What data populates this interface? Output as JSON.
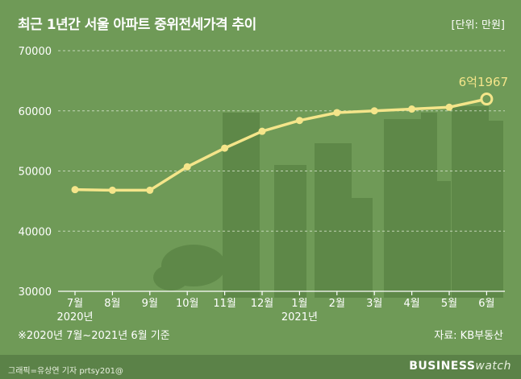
{
  "title": "최근 1년간 서울 아파트 중위전세가격 추이",
  "unit": "[단위: 만원]",
  "note": "※2020년 7월~2021년 6월 기준",
  "source": "자료: KB부동산",
  "credit": "그래픽=유상연 기자 prtsy201@",
  "brand": {
    "part1": "BUSINESS",
    "part2": "watch"
  },
  "colors": {
    "background": "#6f9a57",
    "line": "#f4e58a",
    "footer": "#5b8248",
    "text": "#ffffff"
  },
  "chart_data": {
    "type": "line",
    "categories": [
      "7월",
      "8월",
      "9월",
      "10월",
      "11월",
      "12월",
      "1월",
      "2월",
      "3월",
      "4월",
      "5월",
      "6월"
    ],
    "year_labels": [
      {
        "index": 0,
        "label": "2020년"
      },
      {
        "index": 6,
        "label": "2021년"
      }
    ],
    "values": [
      46900,
      46800,
      46800,
      50700,
      53800,
      56600,
      58400,
      59700,
      60000,
      60300,
      60600,
      61967
    ],
    "ylim": [
      30000,
      70000
    ],
    "yticks": [
      30000,
      40000,
      50000,
      60000,
      70000
    ],
    "ytick_labels": [
      "30000",
      "40000",
      "50000",
      "60000",
      "70000"
    ],
    "annotation": {
      "index": 11,
      "text": "6억1967"
    },
    "grid": true
  }
}
